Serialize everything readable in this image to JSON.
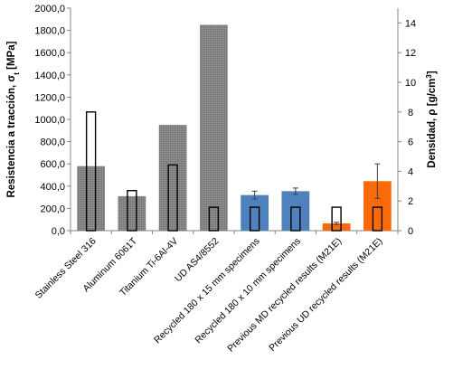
{
  "chart_data": {
    "type": "bar",
    "categories": [
      "Stainless Steel 316",
      "Aluminum 6061T",
      "Titanium Ti-6Al-4V",
      "UD AS4/8552",
      "Recycled 180 x 15 mm specimens",
      "Recycled 180 x 10 mm specimens",
      "Previous MD recycled results (M21E)",
      "Previous UD recycled results (M21E)"
    ],
    "series": [
      {
        "axis": "left",
        "values": [
          580,
          310,
          950,
          1850,
          320,
          355,
          65,
          445
        ],
        "error": [
          null,
          null,
          null,
          null,
          35,
          28,
          10,
          155
        ],
        "colors": [
          "#7f7f7f",
          "#7f7f7f",
          "#7f7f7f",
          "#7f7f7f",
          "#4f81bd",
          "#4f81bd",
          "#f96a0b",
          "#f96a0b"
        ]
      },
      {
        "axis": "right",
        "values": [
          8.0,
          2.7,
          4.43,
          1.58,
          1.58,
          1.58,
          1.58,
          1.58
        ]
      }
    ],
    "ylabel_left": "Resistencia a tracción, σ",
    "ylabel_left_sub": "t",
    "ylabel_left_unit": " [MPa]",
    "ylabel_right": "Densidad, ρ [g/cm",
    "ylabel_right_sup": "3",
    "ylabel_right_end": "]",
    "ylim_left": [
      0,
      2000
    ],
    "ylim_right": [
      0,
      15
    ],
    "left_ticks": [
      "0,0",
      "200,0",
      "400,0",
      "600,0",
      "800,0",
      "1000,0",
      "1200,0",
      "1400,0",
      "1600,0",
      "1800,0",
      "2000,0"
    ],
    "right_ticks": [
      "0",
      "2",
      "4",
      "6",
      "8",
      "10",
      "12",
      "14"
    ],
    "grid": false,
    "legend": "none"
  }
}
